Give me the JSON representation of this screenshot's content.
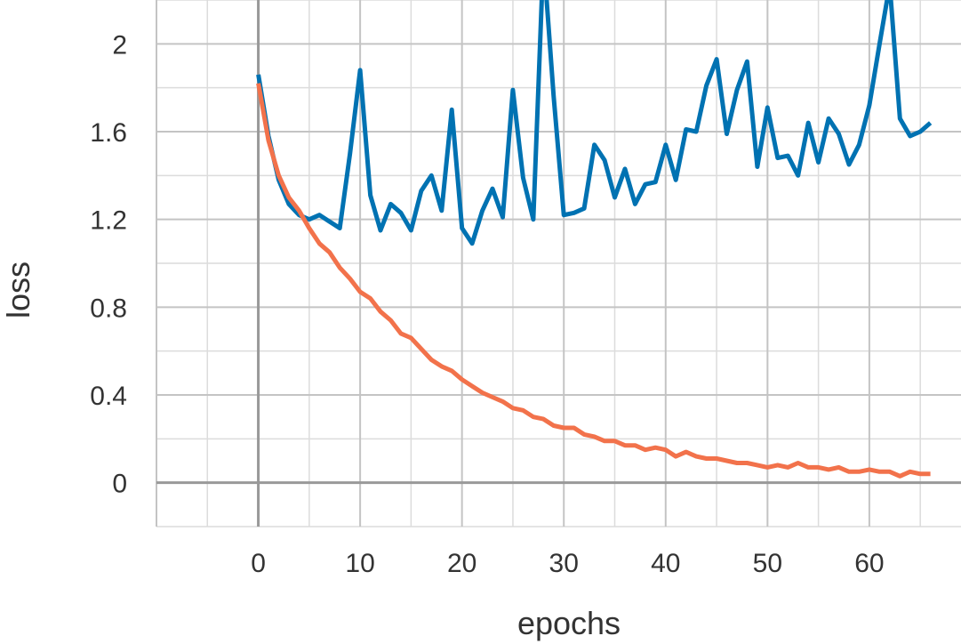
{
  "chart_data": {
    "type": "line",
    "title": "",
    "xlabel": "epochs",
    "ylabel": "loss",
    "xlim": [
      -10,
      69
    ],
    "ylim": [
      -0.2,
      2.2
    ],
    "grid": true,
    "x_ticks": [
      0,
      10,
      20,
      30,
      40,
      50,
      60
    ],
    "y_ticks": [
      0,
      0.4,
      0.8,
      1.2,
      1.6,
      2
    ],
    "x_tick_labels": [
      "0",
      "10",
      "20",
      "30",
      "40",
      "50",
      "60"
    ],
    "y_tick_labels": [
      "0",
      "0.4",
      "0.8",
      "1.2",
      "1.6",
      "2"
    ],
    "series": [
      {
        "color": "#0072b2",
        "x": [
          0,
          1,
          2,
          3,
          4,
          5,
          6,
          7,
          8,
          9,
          10,
          11,
          12,
          13,
          14,
          15,
          16,
          17,
          18,
          19,
          20,
          21,
          22,
          23,
          24,
          25,
          26,
          27,
          28,
          29,
          30,
          31,
          32,
          33,
          34,
          35,
          36,
          37,
          38,
          39,
          40,
          41,
          42,
          43,
          44,
          45,
          46,
          47,
          48,
          49,
          50,
          51,
          52,
          53,
          54,
          55,
          56,
          57,
          58,
          59,
          60,
          61,
          62,
          63,
          64,
          65,
          66
        ],
        "y": [
          1.86,
          1.58,
          1.38,
          1.27,
          1.22,
          1.2,
          1.22,
          1.19,
          1.16,
          1.5,
          1.88,
          1.31,
          1.15,
          1.27,
          1.23,
          1.15,
          1.33,
          1.4,
          1.24,
          1.7,
          1.16,
          1.09,
          1.24,
          1.34,
          1.21,
          1.79,
          1.39,
          1.2,
          2.4,
          1.76,
          1.22,
          1.23,
          1.25,
          1.54,
          1.47,
          1.3,
          1.43,
          1.27,
          1.36,
          1.37,
          1.54,
          1.38,
          1.61,
          1.6,
          1.81,
          1.93,
          1.59,
          1.79,
          1.92,
          1.44,
          1.71,
          1.48,
          1.49,
          1.4,
          1.64,
          1.46,
          1.66,
          1.59,
          1.45,
          1.54,
          1.72,
          2.0,
          2.27,
          1.66,
          1.58,
          1.6,
          1.64
        ]
      },
      {
        "color": "#f2724b",
        "x": [
          0,
          1,
          2,
          3,
          4,
          5,
          6,
          7,
          8,
          9,
          10,
          11,
          12,
          13,
          14,
          15,
          16,
          17,
          18,
          19,
          20,
          21,
          22,
          23,
          24,
          25,
          26,
          27,
          28,
          29,
          30,
          31,
          32,
          33,
          34,
          35,
          36,
          37,
          38,
          39,
          40,
          41,
          42,
          43,
          44,
          45,
          46,
          47,
          48,
          49,
          50,
          51,
          52,
          53,
          54,
          55,
          56,
          57,
          58,
          59,
          60,
          61,
          62,
          63,
          64,
          65,
          66
        ],
        "y": [
          1.82,
          1.56,
          1.4,
          1.3,
          1.24,
          1.16,
          1.09,
          1.05,
          0.98,
          0.93,
          0.87,
          0.84,
          0.78,
          0.74,
          0.68,
          0.66,
          0.61,
          0.56,
          0.53,
          0.51,
          0.47,
          0.44,
          0.41,
          0.39,
          0.37,
          0.34,
          0.33,
          0.3,
          0.29,
          0.26,
          0.25,
          0.25,
          0.22,
          0.21,
          0.19,
          0.19,
          0.17,
          0.17,
          0.15,
          0.16,
          0.15,
          0.12,
          0.14,
          0.12,
          0.11,
          0.11,
          0.1,
          0.09,
          0.09,
          0.08,
          0.07,
          0.08,
          0.07,
          0.09,
          0.07,
          0.07,
          0.06,
          0.07,
          0.05,
          0.05,
          0.06,
          0.05,
          0.05,
          0.03,
          0.05,
          0.04,
          0.04
        ]
      }
    ]
  }
}
